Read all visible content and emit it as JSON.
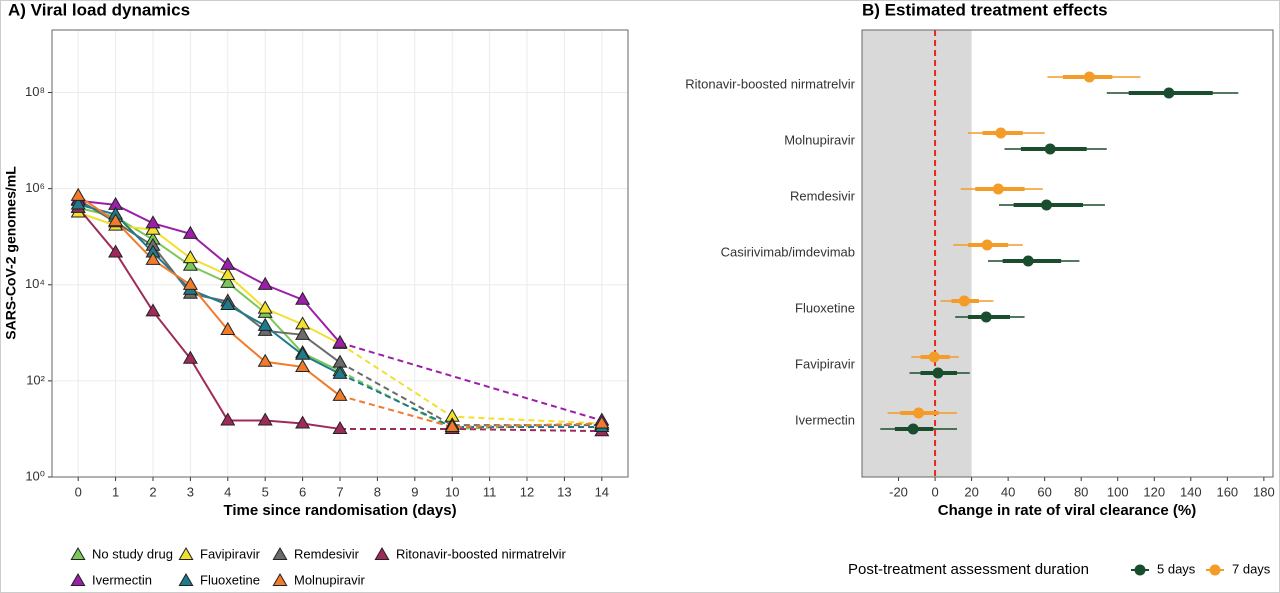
{
  "chart_data": [
    {
      "type": "line",
      "title": "A) Viral load dynamics",
      "x_label": "Time since randomisation (days)",
      "y_label": "SARS-CoV-2 genomes/mL",
      "log_scale": true,
      "grid": true,
      "x": [
        0,
        1,
        2,
        3,
        4,
        5,
        6,
        7,
        10,
        14
      ],
      "xlim": [
        -0.7,
        14.7
      ],
      "xticks": [
        0,
        1,
        2,
        3,
        4,
        5,
        6,
        7,
        8,
        9,
        10,
        11,
        12,
        13,
        14
      ],
      "ylim": [
        1,
        2000000000
      ],
      "yticks": [
        {
          "value": 1,
          "label": "10⁰"
        },
        {
          "value": 100,
          "label": "10²"
        },
        {
          "value": 10000,
          "label": "10⁴"
        },
        {
          "value": 1000000,
          "label": "10⁶"
        },
        {
          "value": 100000000,
          "label": "10⁸"
        }
      ],
      "series": [
        {
          "name": "No study drug",
          "color": "#7ac85a",
          "values": [
            400000,
            260000,
            87000,
            25000,
            11000,
            2600,
            380,
            160,
            10,
            13
          ]
        },
        {
          "name": "Favipiravir",
          "color": "#f2e02e",
          "values": [
            320000,
            170000,
            140000,
            36000,
            16000,
            3200,
            1500,
            590,
            18,
            13
          ]
        },
        {
          "name": "Remdesivir",
          "color": "#6b6b6b",
          "values": [
            590000,
            200000,
            65000,
            6500,
            4500,
            1100,
            910,
            240,
            12,
            12
          ]
        },
        {
          "name": "Ritonavir-boosted nirmatrelvir",
          "color": "#9e2a5a",
          "values": [
            400000,
            47000,
            2800,
            290,
            15,
            15,
            13,
            10,
            10,
            9
          ]
        },
        {
          "name": "Ivermectin",
          "color": "#9b1fa8",
          "values": [
            560000,
            460000,
            190000,
            115000,
            26000,
            10000,
            4900,
            620,
            null,
            15
          ]
        },
        {
          "name": "Fluoxetine",
          "color": "#1f7a8c",
          "values": [
            470000,
            290000,
            47000,
            7900,
            3800,
            1400,
            350,
            140,
            11,
            11
          ]
        },
        {
          "name": "Molnupiravir",
          "color": "#f07b2a",
          "values": [
            710000,
            210000,
            33000,
            10000,
            1150,
            250,
            195,
            49,
            11,
            13
          ]
        }
      ]
    },
    {
      "type": "forest",
      "title": "B) Estimated treatment effects",
      "x_label": "Change in rate of viral clearance (%)",
      "legend_title": "Post-treatment assessment duration",
      "legend": "bottom",
      "categories": [
        "Ritonavir-boosted nirmatrelvir",
        "Molnupiravir",
        "Remdesivir",
        "Casirivimab/imdevimab",
        "Fluoxetine",
        "Favipiravir",
        "Ivermectin"
      ],
      "xlim": [
        -40,
        185
      ],
      "xticks": [
        -20,
        0,
        20,
        40,
        60,
        80,
        100,
        120,
        140,
        160,
        180
      ],
      "shaded_region": [
        -40,
        20
      ],
      "reference_line": 0,
      "series": [
        {
          "name": "5 days",
          "color": "#1a4d2e",
          "values": [
            128,
            63,
            61,
            51,
            28,
            1.6,
            -12
          ],
          "inner_low": [
            106,
            47,
            43,
            37,
            18,
            -8,
            -22
          ],
          "inner_high": [
            152,
            83,
            81,
            69,
            41,
            12,
            -1
          ],
          "outer_low": [
            94,
            38,
            35,
            29,
            11,
            -14,
            -30
          ],
          "outer_high": [
            166,
            94,
            93,
            79,
            49,
            19,
            12
          ]
        },
        {
          "name": "7 days",
          "color": "#f39c27",
          "values": [
            84.5,
            36,
            34.6,
            28.5,
            16,
            -0.5,
            -9
          ],
          "inner_low": [
            70,
            26,
            22,
            18,
            9,
            -8,
            -19
          ],
          "inner_high": [
            97,
            48,
            49,
            40,
            24,
            8,
            2
          ],
          "outer_low": [
            61.5,
            18,
            14,
            10,
            3,
            -13,
            -26
          ],
          "outer_high": [
            112.5,
            60,
            59,
            48,
            32,
            13,
            12
          ]
        }
      ]
    }
  ]
}
